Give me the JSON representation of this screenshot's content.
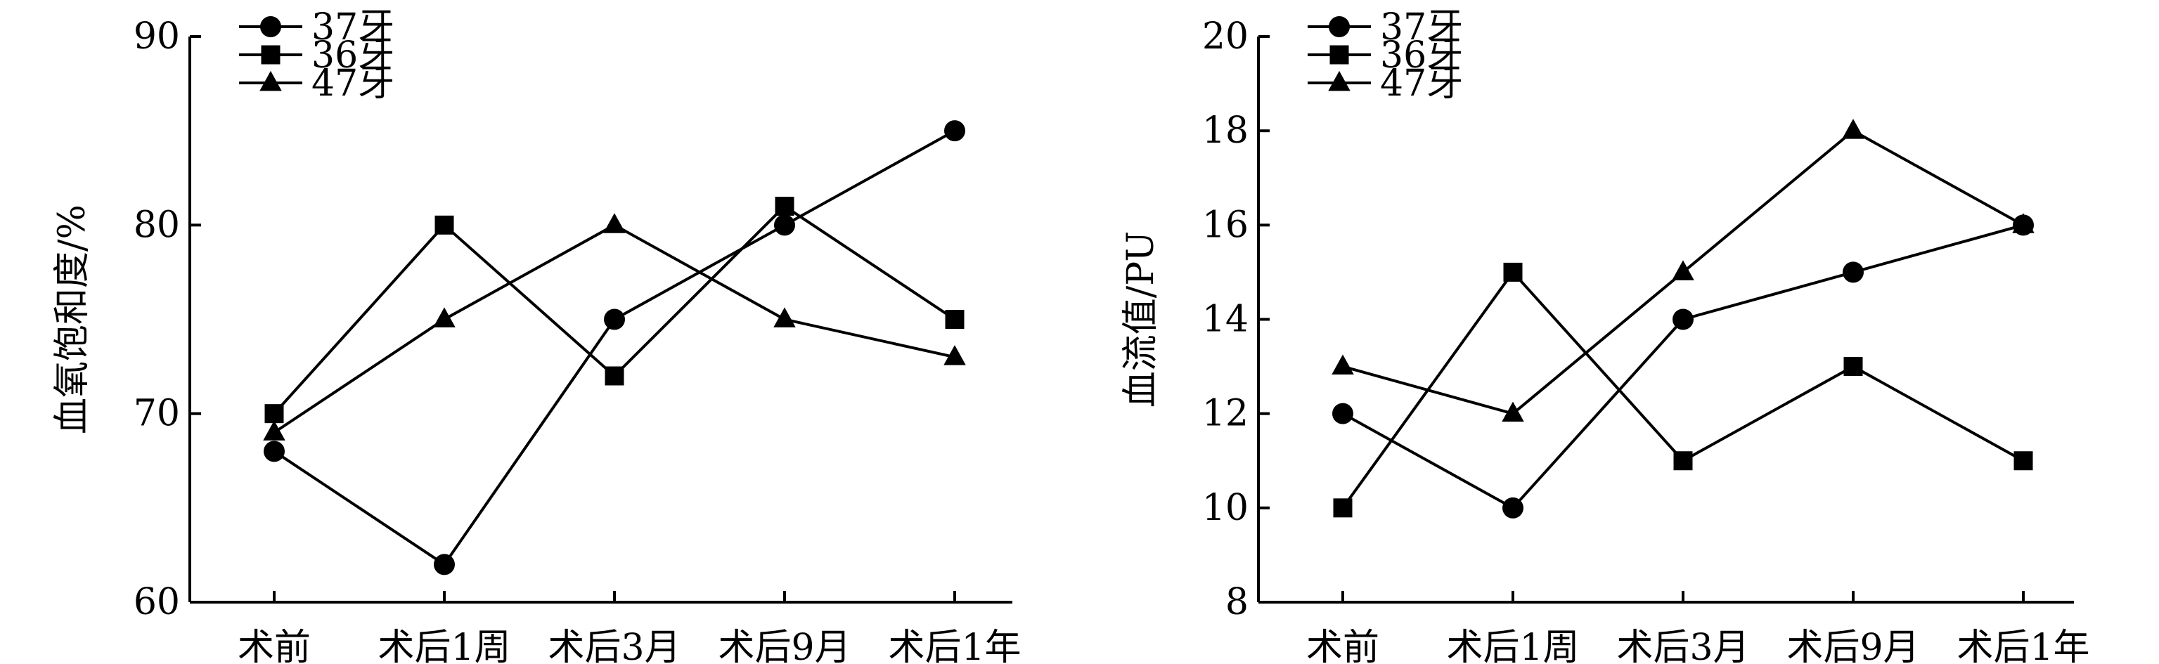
{
  "chart_data": [
    {
      "type": "line",
      "title": "",
      "xlabel": "",
      "ylabel": "血氧饱和度/%",
      "categories": [
        "术前",
        "术后1周",
        "术后3月",
        "术后9月",
        "术后1年"
      ],
      "ylim": [
        60,
        90
      ],
      "yticks": [
        60,
        70,
        80,
        90
      ],
      "legend_position": "top-left",
      "series": [
        {
          "name": "37牙",
          "marker": "circle",
          "values": [
            68,
            62,
            75,
            80,
            85
          ]
        },
        {
          "name": "36牙",
          "marker": "square",
          "values": [
            70,
            80,
            72,
            81,
            75
          ]
        },
        {
          "name": "47牙",
          "marker": "triangle",
          "values": [
            69,
            75,
            80,
            75,
            73
          ]
        }
      ]
    },
    {
      "type": "line",
      "title": "",
      "xlabel": "",
      "ylabel": "血流值/PU",
      "categories": [
        "术前",
        "术后1周",
        "术后3月",
        "术后9月",
        "术后1年"
      ],
      "ylim": [
        8,
        20
      ],
      "yticks": [
        8,
        10,
        12,
        14,
        16,
        18,
        20
      ],
      "legend_position": "top-left",
      "series": [
        {
          "name": "37牙",
          "marker": "circle",
          "values": [
            12,
            10,
            14,
            15,
            16
          ]
        },
        {
          "name": "36牙",
          "marker": "square",
          "values": [
            10,
            15,
            11,
            13,
            11
          ]
        },
        {
          "name": "47牙",
          "marker": "triangle",
          "values": [
            13,
            12,
            15,
            18,
            16
          ]
        }
      ]
    }
  ]
}
